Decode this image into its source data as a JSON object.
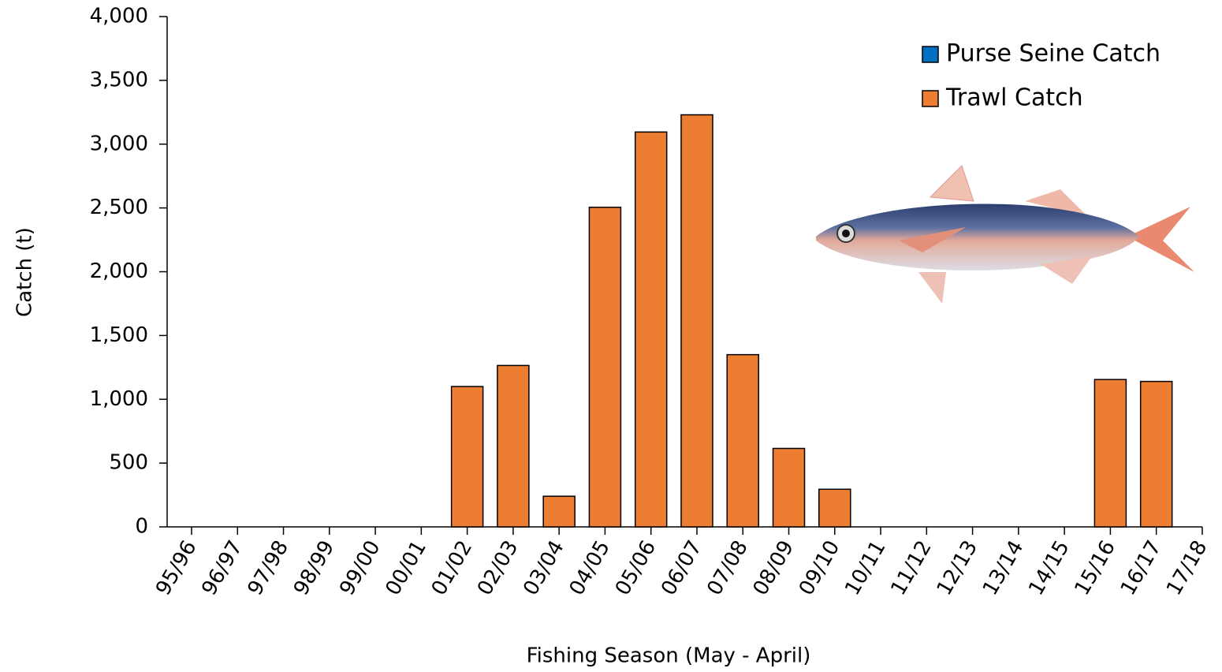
{
  "chart_data": {
    "type": "bar",
    "stacked": true,
    "x_label": "Fishing Season (May - April)",
    "y_label": "Catch (t)",
    "categories": [
      "95/96",
      "96/97",
      "97/98",
      "98/99",
      "99/00",
      "00/01",
      "01/02",
      "02/03",
      "03/04",
      "04/05",
      "05/06",
      "06/07",
      "07/08",
      "08/09",
      "09/10",
      "10/11",
      "11/12",
      "12/13",
      "13/14",
      "14/15",
      "15/16",
      "16/17",
      "17/18"
    ],
    "series": [
      {
        "name": "Purse Seine Catch",
        "color": "#0070c0",
        "values": [
          0,
          0,
          0,
          0,
          0,
          0,
          0,
          0,
          0,
          0,
          0,
          0,
          0,
          0,
          0,
          0,
          0,
          0,
          0,
          0,
          0,
          0,
          0
        ]
      },
      {
        "name": "Trawl Catch",
        "color": "#ed7d31",
        "values": [
          0,
          0,
          0,
          0,
          0,
          0,
          1100,
          1265,
          240,
          2505,
          3095,
          3230,
          1350,
          615,
          295,
          0,
          0,
          0,
          0,
          0,
          1155,
          1140,
          0
        ]
      }
    ],
    "ylim": [
      0,
      4000
    ],
    "yticks": [
      0,
      500,
      {
        "value": 1000,
        "label": "1,000"
      },
      {
        "value": 1500,
        "label": "1,500"
      },
      {
        "value": 2000,
        "label": "2,000"
      },
      {
        "value": 2500,
        "label": "2,500"
      },
      {
        "value": 3000,
        "label": "3,000"
      },
      {
        "value": 3500,
        "label": "3,500"
      },
      {
        "value": 4000,
        "label": "4,000"
      }
    ],
    "legend": "upper right"
  }
}
